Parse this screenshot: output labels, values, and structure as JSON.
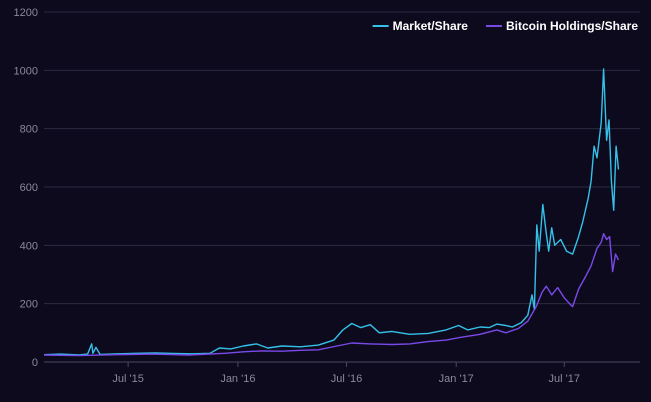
{
  "chart_data": {
    "type": "line",
    "x_type": "date",
    "xlim": [
      "2015-02-10",
      "2017-11-05"
    ],
    "ylim": [
      0,
      1200
    ],
    "y_ticks": [
      0,
      200,
      400,
      600,
      800,
      1000,
      1200
    ],
    "x_ticks": [
      {
        "date": "2015-07-01",
        "label": "Jul '15"
      },
      {
        "date": "2016-01-01",
        "label": "Jan '16"
      },
      {
        "date": "2016-07-01",
        "label": "Jul '16"
      },
      {
        "date": "2017-01-01",
        "label": "Jan '17"
      },
      {
        "date": "2017-07-01",
        "label": "Jul '17"
      }
    ],
    "grid": true,
    "legend_position": "top-right",
    "series": [
      {
        "name": "Market/Share",
        "color": "#35c0e8",
        "points": [
          [
            "2015-02-10",
            25
          ],
          [
            "2015-03-10",
            27
          ],
          [
            "2015-04-10",
            24
          ],
          [
            "2015-04-24",
            27
          ],
          [
            "2015-05-01",
            62
          ],
          [
            "2015-05-03",
            30
          ],
          [
            "2015-05-08",
            50
          ],
          [
            "2015-05-15",
            26
          ],
          [
            "2015-06-15",
            28
          ],
          [
            "2015-07-15",
            30
          ],
          [
            "2015-08-15",
            31
          ],
          [
            "2015-09-15",
            29
          ],
          [
            "2015-10-15",
            28
          ],
          [
            "2015-11-15",
            30
          ],
          [
            "2015-12-01",
            48
          ],
          [
            "2015-12-20",
            45
          ],
          [
            "2016-01-10",
            55
          ],
          [
            "2016-02-01",
            62
          ],
          [
            "2016-02-20",
            48
          ],
          [
            "2016-03-15",
            55
          ],
          [
            "2016-04-15",
            52
          ],
          [
            "2016-05-15",
            58
          ],
          [
            "2016-06-10",
            75
          ],
          [
            "2016-06-25",
            110
          ],
          [
            "2016-07-10",
            132
          ],
          [
            "2016-07-25",
            118
          ],
          [
            "2016-08-10",
            128
          ],
          [
            "2016-08-25",
            100
          ],
          [
            "2016-09-15",
            105
          ],
          [
            "2016-10-15",
            95
          ],
          [
            "2016-11-15",
            98
          ],
          [
            "2016-12-15",
            110
          ],
          [
            "2017-01-05",
            125
          ],
          [
            "2017-01-20",
            110
          ],
          [
            "2017-02-10",
            120
          ],
          [
            "2017-02-25",
            118
          ],
          [
            "2017-03-10",
            130
          ],
          [
            "2017-03-25",
            125
          ],
          [
            "2017-04-05",
            120
          ],
          [
            "2017-04-20",
            135
          ],
          [
            "2017-05-01",
            160
          ],
          [
            "2017-05-08",
            230
          ],
          [
            "2017-05-12",
            180
          ],
          [
            "2017-05-16",
            470
          ],
          [
            "2017-05-20",
            380
          ],
          [
            "2017-05-26",
            540
          ],
          [
            "2017-06-01",
            440
          ],
          [
            "2017-06-05",
            380
          ],
          [
            "2017-06-10",
            460
          ],
          [
            "2017-06-15",
            400
          ],
          [
            "2017-06-25",
            420
          ],
          [
            "2017-07-05",
            380
          ],
          [
            "2017-07-15",
            370
          ],
          [
            "2017-07-25",
            430
          ],
          [
            "2017-08-01",
            480
          ],
          [
            "2017-08-10",
            560
          ],
          [
            "2017-08-15",
            620
          ],
          [
            "2017-08-20",
            740
          ],
          [
            "2017-08-25",
            700
          ],
          [
            "2017-09-01",
            820
          ],
          [
            "2017-09-05",
            1005
          ],
          [
            "2017-09-10",
            760
          ],
          [
            "2017-09-14",
            830
          ],
          [
            "2017-09-18",
            620
          ],
          [
            "2017-09-22",
            520
          ],
          [
            "2017-09-26",
            740
          ],
          [
            "2017-09-30",
            660
          ]
        ]
      },
      {
        "name": "Bitcoin Holdings/Share",
        "color": "#7a4ae8",
        "points": [
          [
            "2015-02-10",
            24
          ],
          [
            "2015-04-10",
            22
          ],
          [
            "2015-06-10",
            25
          ],
          [
            "2015-08-10",
            27
          ],
          [
            "2015-10-10",
            24
          ],
          [
            "2015-12-10",
            30
          ],
          [
            "2016-01-10",
            35
          ],
          [
            "2016-02-10",
            38
          ],
          [
            "2016-03-15",
            37
          ],
          [
            "2016-04-15",
            40
          ],
          [
            "2016-05-15",
            42
          ],
          [
            "2016-06-15",
            55
          ],
          [
            "2016-07-10",
            65
          ],
          [
            "2016-08-10",
            62
          ],
          [
            "2016-09-15",
            60
          ],
          [
            "2016-10-15",
            62
          ],
          [
            "2016-11-15",
            70
          ],
          [
            "2016-12-15",
            75
          ],
          [
            "2017-01-10",
            85
          ],
          [
            "2017-02-10",
            95
          ],
          [
            "2017-03-10",
            110
          ],
          [
            "2017-03-25",
            100
          ],
          [
            "2017-04-15",
            115
          ],
          [
            "2017-05-01",
            140
          ],
          [
            "2017-05-15",
            190
          ],
          [
            "2017-05-25",
            240
          ],
          [
            "2017-06-01",
            260
          ],
          [
            "2017-06-10",
            230
          ],
          [
            "2017-06-20",
            255
          ],
          [
            "2017-07-01",
            220
          ],
          [
            "2017-07-10",
            200
          ],
          [
            "2017-07-15",
            190
          ],
          [
            "2017-07-25",
            250
          ],
          [
            "2017-08-05",
            290
          ],
          [
            "2017-08-15",
            330
          ],
          [
            "2017-08-25",
            390
          ],
          [
            "2017-09-01",
            410
          ],
          [
            "2017-09-05",
            440
          ],
          [
            "2017-09-10",
            420
          ],
          [
            "2017-09-15",
            430
          ],
          [
            "2017-09-20",
            310
          ],
          [
            "2017-09-25",
            370
          ],
          [
            "2017-09-30",
            350
          ]
        ]
      }
    ]
  }
}
